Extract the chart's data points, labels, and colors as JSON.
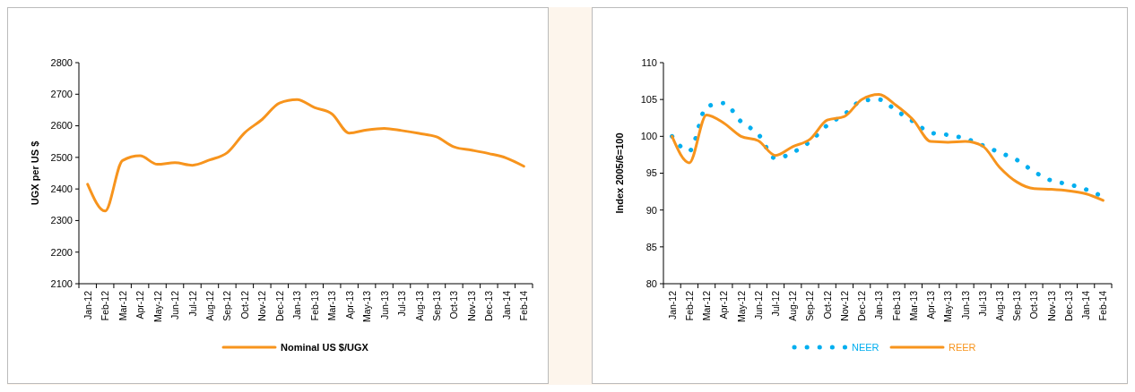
{
  "chart_data": [
    {
      "type": "line",
      "ylabel": "UGX per US $",
      "categories": [
        "Jan-12",
        "Feb-12",
        "Mar-12",
        "Apr-12",
        "May-12",
        "Jun-12",
        "Jul-12",
        "Aug-12",
        "Sep-12",
        "Oct-12",
        "Nov-12",
        "Dec-12",
        "Jan-13",
        "Feb-13",
        "Mar-13",
        "Apr-13",
        "May-13",
        "Jun-13",
        "Jul-13",
        "Aug-13",
        "Sep-13",
        "Oct-13",
        "Nov-13",
        "Dec-13",
        "Jan-14",
        "Feb-14"
      ],
      "series": [
        {
          "name": "Nominal US $/UGX",
          "color": "#f7941d",
          "line_style": "solid",
          "values": [
            2415,
            2330,
            2490,
            2505,
            2478,
            2483,
            2475,
            2492,
            2515,
            2578,
            2620,
            2672,
            2683,
            2658,
            2638,
            2577,
            2587,
            2592,
            2585,
            2576,
            2565,
            2533,
            2523,
            2512,
            2498,
            2472
          ]
        }
      ],
      "ylim": [
        2100,
        2800
      ],
      "yticks": [
        2100,
        2200,
        2300,
        2400,
        2500,
        2600,
        2700,
        2800
      ],
      "grid": false,
      "legend": "bottom",
      "marker": "none"
    },
    {
      "type": "line",
      "ylabel": "Index  2005/6=100",
      "categories": [
        "Jan-12",
        "Feb-12",
        "Mar-12",
        "Apr-12",
        "May-12",
        "Jun-12",
        "Jul-12",
        "Aug-12",
        "Sep-12",
        "Oct-12",
        "Nov-12",
        "Dec-12",
        "Jan-13",
        "Feb-13",
        "Mar-13",
        "Apr-13",
        "May-13",
        "Jun-13",
        "Jul-13",
        "Aug-13",
        "Sep-13",
        "Oct-13",
        "Nov-13",
        "Dec-13",
        "Jan-14",
        "Feb-14"
      ],
      "series": [
        {
          "name": "NEER",
          "color": "#00aeef",
          "line_style": "dotted",
          "values": [
            100,
            98,
            104,
            104.5,
            102,
            100.3,
            97,
            97.8,
            99.3,
            101.5,
            103,
            104.8,
            105,
            103.5,
            102,
            100.5,
            100.2,
            99.7,
            98.8,
            97.8,
            96.8,
            95.2,
            94,
            93.5,
            92.8,
            91.8
          ]
        },
        {
          "name": "REER",
          "color": "#f7941d",
          "line_style": "solid",
          "values": [
            100,
            96.4,
            102.9,
            101.8,
            100,
            99.4,
            97.4,
            98.6,
            99.6,
            102.2,
            102.7,
            105,
            105.7,
            104.2,
            102.2,
            99.3,
            99.2,
            99.3,
            98.7,
            95.8,
            93.8,
            92.9,
            92.8,
            92.6,
            92.2,
            91.3
          ]
        }
      ],
      "ylim": [
        80,
        110
      ],
      "yticks": [
        80,
        85,
        90,
        95,
        100,
        105,
        110
      ],
      "grid": false,
      "legend": "bottom",
      "marker": "none"
    }
  ]
}
